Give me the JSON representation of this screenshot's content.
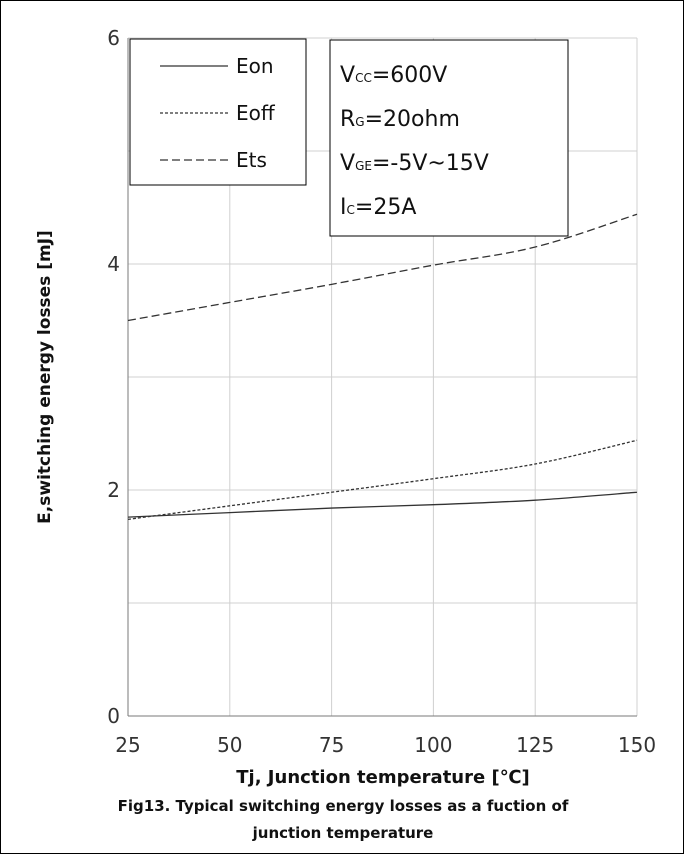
{
  "chart_data": {
    "type": "line",
    "xlabel": "Tj, Junction temperature [℃]",
    "ylabel": "E,switching energy losses [mJ]",
    "caption_line1": "Fig13. Typical switching energy losses as a fuction of",
    "caption_line2": "junction temperature",
    "xlim": [
      25,
      150
    ],
    "ylim": [
      0,
      6
    ],
    "x_ticks": [
      "25",
      "50",
      "75",
      "100",
      "125",
      "150"
    ],
    "y_ticks": [
      "0",
      "2",
      "4",
      "6"
    ],
    "grid": true,
    "legend_position": "top-left",
    "series": [
      {
        "name": "Eon",
        "dash": "solid",
        "x": [
          25,
          50,
          75,
          100,
          125,
          150
        ],
        "y": [
          1.76,
          1.8,
          1.84,
          1.87,
          1.91,
          1.98
        ]
      },
      {
        "name": "Eoff",
        "dash": "dotted",
        "x": [
          25,
          50,
          75,
          100,
          125,
          150
        ],
        "y": [
          1.74,
          1.86,
          1.98,
          2.1,
          2.23,
          2.44
        ]
      },
      {
        "name": "Ets",
        "dash": "dashed",
        "x": [
          25,
          50,
          75,
          100,
          125,
          150
        ],
        "y": [
          3.5,
          3.66,
          3.82,
          3.99,
          4.15,
          4.44
        ]
      }
    ],
    "conditions": [
      {
        "main": "V",
        "sub": "CC",
        "rest": "=600V"
      },
      {
        "main": "R",
        "sub": "G",
        "rest": "=20ohm"
      },
      {
        "main": "V",
        "sub": "GE",
        "rest": "=-5V~15V"
      },
      {
        "main": "I",
        "sub": "C",
        "rest": "=25A"
      }
    ]
  }
}
